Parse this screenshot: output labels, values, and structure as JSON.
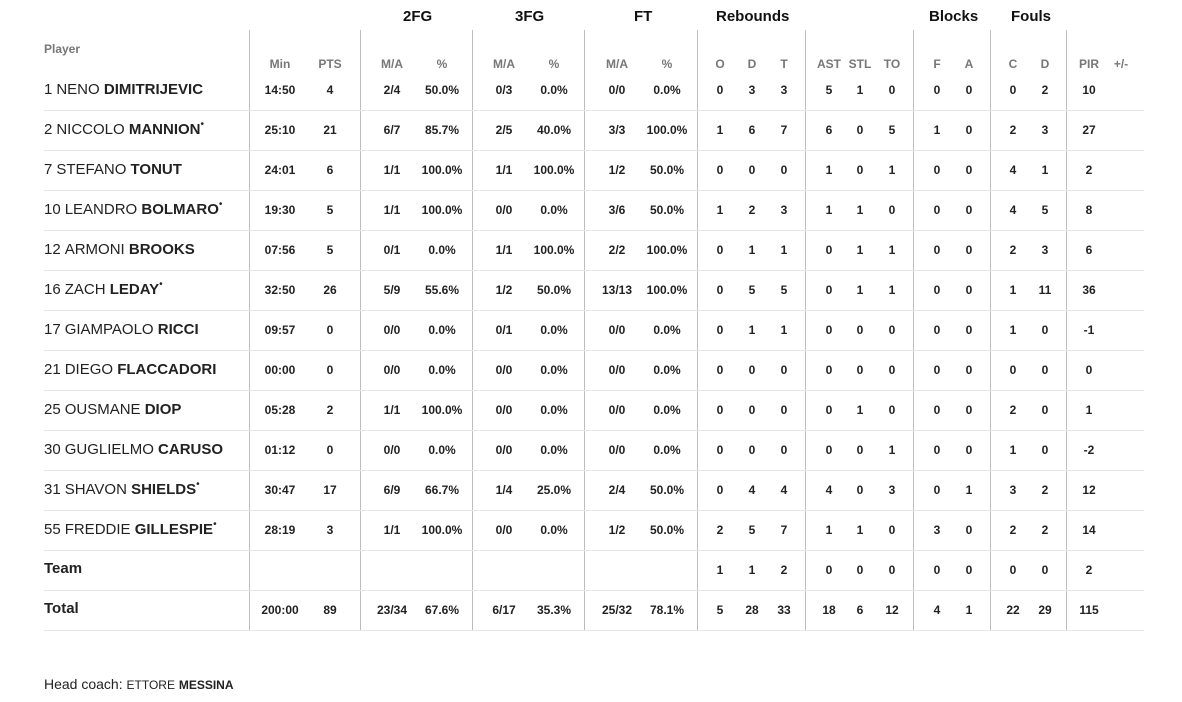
{
  "groups": {
    "fg2": "2FG",
    "fg3": "3FG",
    "ft": "FT",
    "rebounds": "Rebounds",
    "blocks": "Blocks",
    "fouls": "Fouls"
  },
  "player_label": "Player",
  "columns": [
    "Min",
    "PTS",
    "M/A",
    "%",
    "M/A",
    "%",
    "M/A",
    "%",
    "O",
    "D",
    "T",
    "AST",
    "STL",
    "TO",
    "F",
    "A",
    "C",
    "D",
    "PIR",
    "+/-"
  ],
  "players": [
    {
      "number": "1",
      "first": "NENO",
      "last": "DIMITRIJEVIC",
      "starter": false,
      "stats": [
        "14:50",
        "4",
        "2/4",
        "50.0%",
        "0/3",
        "0.0%",
        "0/0",
        "0.0%",
        "0",
        "3",
        "3",
        "5",
        "1",
        "0",
        "0",
        "0",
        "0",
        "2",
        "10",
        ""
      ]
    },
    {
      "number": "2",
      "first": "NICCOLO",
      "last": "MANNION",
      "starter": true,
      "stats": [
        "25:10",
        "21",
        "6/7",
        "85.7%",
        "2/5",
        "40.0%",
        "3/3",
        "100.0%",
        "1",
        "6",
        "7",
        "6",
        "0",
        "5",
        "1",
        "0",
        "2",
        "3",
        "27",
        ""
      ]
    },
    {
      "number": "7",
      "first": "STEFANO",
      "last": "TONUT",
      "starter": false,
      "stats": [
        "24:01",
        "6",
        "1/1",
        "100.0%",
        "1/1",
        "100.0%",
        "1/2",
        "50.0%",
        "0",
        "0",
        "0",
        "1",
        "0",
        "1",
        "0",
        "0",
        "4",
        "1",
        "2",
        ""
      ]
    },
    {
      "number": "10",
      "first": "LEANDRO",
      "last": "BOLMARO",
      "starter": true,
      "stats": [
        "19:30",
        "5",
        "1/1",
        "100.0%",
        "0/0",
        "0.0%",
        "3/6",
        "50.0%",
        "1",
        "2",
        "3",
        "1",
        "1",
        "0",
        "0",
        "0",
        "4",
        "5",
        "8",
        ""
      ]
    },
    {
      "number": "12",
      "first": "ARMONI",
      "last": "BROOKS",
      "starter": false,
      "stats": [
        "07:56",
        "5",
        "0/1",
        "0.0%",
        "1/1",
        "100.0%",
        "2/2",
        "100.0%",
        "0",
        "1",
        "1",
        "0",
        "1",
        "1",
        "0",
        "0",
        "2",
        "3",
        "6",
        ""
      ]
    },
    {
      "number": "16",
      "first": "ZACH",
      "last": "LEDAY",
      "starter": true,
      "stats": [
        "32:50",
        "26",
        "5/9",
        "55.6%",
        "1/2",
        "50.0%",
        "13/13",
        "100.0%",
        "0",
        "5",
        "5",
        "0",
        "1",
        "1",
        "0",
        "0",
        "1",
        "11",
        "36",
        ""
      ]
    },
    {
      "number": "17",
      "first": "GIAMPAOLO",
      "last": "RICCI",
      "starter": false,
      "stats": [
        "09:57",
        "0",
        "0/0",
        "0.0%",
        "0/1",
        "0.0%",
        "0/0",
        "0.0%",
        "0",
        "1",
        "1",
        "0",
        "0",
        "0",
        "0",
        "0",
        "1",
        "0",
        "-1",
        ""
      ]
    },
    {
      "number": "21",
      "first": "DIEGO",
      "last": "FLACCADORI",
      "starter": false,
      "stats": [
        "00:00",
        "0",
        "0/0",
        "0.0%",
        "0/0",
        "0.0%",
        "0/0",
        "0.0%",
        "0",
        "0",
        "0",
        "0",
        "0",
        "0",
        "0",
        "0",
        "0",
        "0",
        "0",
        ""
      ]
    },
    {
      "number": "25",
      "first": "OUSMANE",
      "last": "DIOP",
      "starter": false,
      "stats": [
        "05:28",
        "2",
        "1/1",
        "100.0%",
        "0/0",
        "0.0%",
        "0/0",
        "0.0%",
        "0",
        "0",
        "0",
        "0",
        "1",
        "0",
        "0",
        "0",
        "2",
        "0",
        "1",
        ""
      ]
    },
    {
      "number": "30",
      "first": "GUGLIELMO",
      "last": "CARUSO",
      "starter": false,
      "stats": [
        "01:12",
        "0",
        "0/0",
        "0.0%",
        "0/0",
        "0.0%",
        "0/0",
        "0.0%",
        "0",
        "0",
        "0",
        "0",
        "0",
        "1",
        "0",
        "0",
        "1",
        "0",
        "-2",
        ""
      ]
    },
    {
      "number": "31",
      "first": "SHAVON",
      "last": "SHIELDS",
      "starter": true,
      "stats": [
        "30:47",
        "17",
        "6/9",
        "66.7%",
        "1/4",
        "25.0%",
        "2/4",
        "50.0%",
        "0",
        "4",
        "4",
        "4",
        "0",
        "3",
        "0",
        "1",
        "3",
        "2",
        "12",
        ""
      ]
    },
    {
      "number": "55",
      "first": "FREDDIE",
      "last": "GILLESPIE",
      "starter": true,
      "stats": [
        "28:19",
        "3",
        "1/1",
        "100.0%",
        "0/0",
        "0.0%",
        "1/2",
        "50.0%",
        "2",
        "5",
        "7",
        "1",
        "1",
        "0",
        "3",
        "0",
        "2",
        "2",
        "14",
        ""
      ]
    }
  ],
  "team_row": {
    "label": "Team",
    "stats": [
      "",
      "",
      "",
      "",
      "",
      "",
      "",
      "",
      "1",
      "1",
      "2",
      "0",
      "0",
      "0",
      "0",
      "0",
      "0",
      "0",
      "2",
      ""
    ]
  },
  "total_row": {
    "label": "Total",
    "stats": [
      "200:00",
      "89",
      "23/34",
      "67.6%",
      "6/17",
      "35.3%",
      "25/32",
      "78.1%",
      "5",
      "28",
      "33",
      "18",
      "6",
      "12",
      "4",
      "1",
      "22",
      "29",
      "115",
      ""
    ]
  },
  "coach": {
    "label": "Head coach:",
    "first": "ETTORE",
    "last": "MESSINA"
  }
}
